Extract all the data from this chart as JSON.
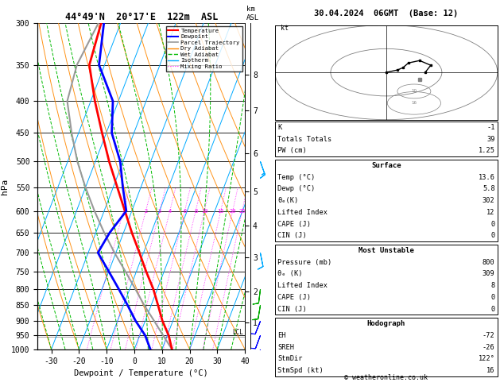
{
  "title_left": "44°49'N  20°17'E  122m  ASL",
  "title_right": "30.04.2024  06GMT  (Base: 12)",
  "ylabel_left": "hPa",
  "ylabel_right_label": "km\nASL",
  "xlabel": "Dewpoint / Temperature (°C)",
  "pressure_ticks": [
    300,
    350,
    400,
    450,
    500,
    550,
    600,
    650,
    700,
    750,
    800,
    850,
    900,
    950,
    1000
  ],
  "km_ticks": [
    1,
    2,
    3,
    4,
    5,
    6,
    7,
    8
  ],
  "km_pressures": [
    905,
    808,
    712,
    633,
    558,
    485,
    414,
    363
  ],
  "lcl_pressure": 955,
  "xlim": [
    -35,
    40
  ],
  "temp_profile_p": [
    1000,
    950,
    900,
    850,
    800,
    750,
    700,
    650,
    600,
    550,
    500,
    450,
    400,
    350,
    300
  ],
  "temp_profile_t": [
    13.6,
    10.5,
    6.2,
    2.5,
    -1.5,
    -6.5,
    -11.5,
    -17.0,
    -22.5,
    -28.5,
    -35.0,
    -41.5,
    -48.5,
    -55.5,
    -57.0
  ],
  "dewp_profile_p": [
    1000,
    950,
    900,
    850,
    800,
    750,
    700,
    650,
    600,
    550,
    500,
    450,
    400,
    350,
    300
  ],
  "dewp_profile_t": [
    5.8,
    2.0,
    -3.5,
    -8.5,
    -14.0,
    -20.0,
    -26.5,
    -25.0,
    -22.0,
    -26.5,
    -31.0,
    -38.0,
    -42.0,
    -52.0,
    -56.0
  ],
  "parcel_profile_p": [
    1000,
    950,
    900,
    850,
    800,
    750,
    700,
    650,
    600,
    550,
    500,
    450,
    400,
    350,
    300
  ],
  "parcel_profile_t": [
    13.6,
    8.5,
    3.2,
    -2.5,
    -8.0,
    -14.0,
    -20.5,
    -27.0,
    -33.5,
    -40.0,
    -46.5,
    -52.5,
    -58.5,
    -60.0,
    -58.0
  ],
  "isotherm_color": "#00aaff",
  "dry_adiabat_color": "#ff8800",
  "wet_adiabat_color": "#00bb00",
  "mixing_ratio_color": "#ff00ff",
  "mixing_ratios": [
    1,
    2,
    3,
    4,
    6,
    8,
    10,
    15,
    20,
    25
  ],
  "temp_color": "#ff0000",
  "dewp_color": "#0000ff",
  "parcel_color": "#999999",
  "skew_factor": 45,
  "background_color": "#ffffff",
  "surface_temp": "13.6",
  "surface_dewp": "5.8",
  "surface_theta_e": "302",
  "surface_li": "12",
  "surface_cape": "0",
  "surface_cin": "0",
  "mu_pressure": "800",
  "mu_theta_e": "309",
  "mu_li": "8",
  "mu_cape": "0",
  "mu_cin": "0",
  "hodo_eh": "-72",
  "hodo_sreh": "-26",
  "hodo_stmdir": "122°",
  "hodo_stmspd": "16",
  "idx_k": "-1",
  "idx_tt": "39",
  "idx_pw": "1.25",
  "copyright": "© weatheronline.co.uk",
  "wind_barbs": [
    {
      "p": 1000,
      "u": 2,
      "v": 8,
      "color": "#0000ff"
    },
    {
      "p": 950,
      "u": 3,
      "v": 8,
      "color": "#0000ff"
    },
    {
      "p": 900,
      "u": 4,
      "v": 10,
      "color": "#0000ff"
    },
    {
      "p": 850,
      "u": 2,
      "v": 12,
      "color": "#00aa00"
    },
    {
      "p": 800,
      "u": 1,
      "v": 8,
      "color": "#00aa00"
    },
    {
      "p": 700,
      "u": -2,
      "v": 10,
      "color": "#00aaff"
    },
    {
      "p": 500,
      "u": -5,
      "v": 14,
      "color": "#00aaff"
    }
  ],
  "hodo_u": [
    0,
    2,
    3,
    4,
    6,
    8,
    7
  ],
  "hodo_v": [
    0,
    1,
    2,
    4,
    5,
    3,
    0
  ]
}
